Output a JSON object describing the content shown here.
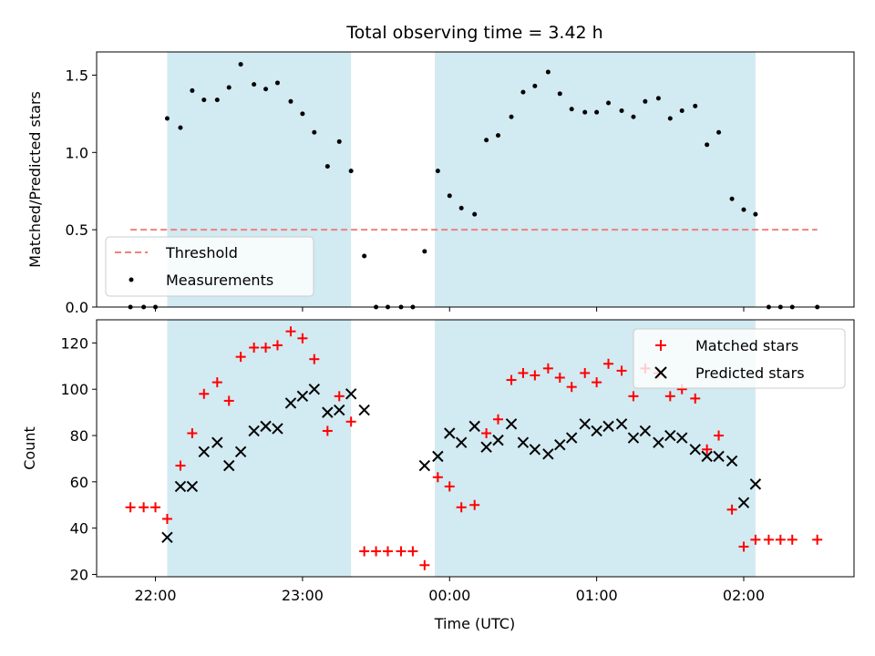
{
  "colors": {
    "shade": "#add8e6",
    "threshold": "#f08080",
    "measurements": "#000000",
    "matched": "#ff0000",
    "predicted": "#000000"
  },
  "chart_data": {
    "type": "scatter",
    "title": "Total observing time = 3.42 h",
    "xlabel": "Time (UTC)",
    "x_ticks": [
      "22:00",
      "23:00",
      "00:00",
      "01:00",
      "02:00"
    ],
    "x_tick_values": [
      22.0,
      23.0,
      24.0,
      25.0,
      26.0
    ],
    "xlim": [
      21.6,
      26.75
    ],
    "shaded_intervals": [
      [
        22.08,
        23.33
      ],
      [
        23.9,
        26.08
      ]
    ],
    "top": {
      "ylabel": "Matched/Predicted stars",
      "ylim": [
        0,
        1.65
      ],
      "y_ticks": [
        "0.0",
        "0.5",
        "1.0",
        "1.5"
      ],
      "y_tick_values": [
        0,
        0.5,
        1.0,
        1.5
      ],
      "threshold": {
        "name": "Threshold",
        "value": 0.5,
        "x_range": [
          21.83,
          26.5
        ]
      },
      "legend": {
        "location": "lower-left",
        "entries": [
          "Threshold",
          "Measurements"
        ]
      },
      "measurements": {
        "name": "Measurements",
        "points": [
          [
            21.83,
            0
          ],
          [
            21.92,
            0
          ],
          [
            22.0,
            0
          ],
          [
            22.08,
            1.22
          ],
          [
            22.17,
            1.16
          ],
          [
            22.25,
            1.4
          ],
          [
            22.33,
            1.34
          ],
          [
            22.42,
            1.34
          ],
          [
            22.5,
            1.42
          ],
          [
            22.58,
            1.57
          ],
          [
            22.67,
            1.44
          ],
          [
            22.75,
            1.41
          ],
          [
            22.83,
            1.45
          ],
          [
            22.92,
            1.33
          ],
          [
            23.0,
            1.25
          ],
          [
            23.08,
            1.13
          ],
          [
            23.17,
            0.91
          ],
          [
            23.25,
            1.07
          ],
          [
            23.33,
            0.88
          ],
          [
            23.42,
            0.33
          ],
          [
            23.5,
            0
          ],
          [
            23.58,
            0
          ],
          [
            23.67,
            0
          ],
          [
            23.75,
            0
          ],
          [
            23.83,
            0.36
          ],
          [
            23.92,
            0.88
          ],
          [
            24.0,
            0.72
          ],
          [
            24.08,
            0.64
          ],
          [
            24.17,
            0.6
          ],
          [
            24.25,
            1.08
          ],
          [
            24.33,
            1.11
          ],
          [
            24.42,
            1.23
          ],
          [
            24.5,
            1.39
          ],
          [
            24.58,
            1.43
          ],
          [
            24.67,
            1.52
          ],
          [
            24.75,
            1.38
          ],
          [
            24.83,
            1.28
          ],
          [
            24.92,
            1.26
          ],
          [
            25.0,
            1.26
          ],
          [
            25.08,
            1.32
          ],
          [
            25.17,
            1.27
          ],
          [
            25.25,
            1.23
          ],
          [
            25.33,
            1.33
          ],
          [
            25.42,
            1.35
          ],
          [
            25.5,
            1.22
          ],
          [
            25.58,
            1.27
          ],
          [
            25.67,
            1.3
          ],
          [
            25.75,
            1.05
          ],
          [
            25.83,
            1.13
          ],
          [
            25.92,
            0.7
          ],
          [
            26.0,
            0.63
          ],
          [
            26.08,
            0.6
          ],
          [
            26.17,
            0
          ],
          [
            26.25,
            0
          ],
          [
            26.33,
            0
          ],
          [
            26.5,
            0
          ]
        ]
      }
    },
    "bottom": {
      "ylabel": "Count",
      "ylim": [
        19,
        130
      ],
      "y_ticks": [
        "20",
        "40",
        "60",
        "80",
        "100",
        "120"
      ],
      "y_tick_values": [
        20,
        40,
        60,
        80,
        100,
        120
      ],
      "legend": {
        "location": "upper-right",
        "entries": [
          "Matched stars",
          "Predicted stars"
        ]
      },
      "matched": {
        "name": "Matched stars",
        "points": [
          [
            21.83,
            49
          ],
          [
            21.92,
            49
          ],
          [
            22.0,
            49
          ],
          [
            22.08,
            44
          ],
          [
            22.17,
            67
          ],
          [
            22.25,
            81
          ],
          [
            22.33,
            98
          ],
          [
            22.42,
            103
          ],
          [
            22.5,
            95
          ],
          [
            22.58,
            114
          ],
          [
            22.67,
            118
          ],
          [
            22.75,
            118
          ],
          [
            22.83,
            119
          ],
          [
            22.92,
            125
          ],
          [
            23.0,
            122
          ],
          [
            23.08,
            113
          ],
          [
            23.17,
            82
          ],
          [
            23.25,
            97
          ],
          [
            23.33,
            86
          ],
          [
            23.42,
            30
          ],
          [
            23.5,
            30
          ],
          [
            23.58,
            30
          ],
          [
            23.67,
            30
          ],
          [
            23.75,
            30
          ],
          [
            23.83,
            24
          ],
          [
            23.92,
            62
          ],
          [
            24.0,
            58
          ],
          [
            24.08,
            49
          ],
          [
            24.17,
            50
          ],
          [
            24.25,
            81
          ],
          [
            24.33,
            87
          ],
          [
            24.42,
            104
          ],
          [
            24.5,
            107
          ],
          [
            24.58,
            106
          ],
          [
            24.67,
            109
          ],
          [
            24.75,
            105
          ],
          [
            24.83,
            101
          ],
          [
            24.92,
            107
          ],
          [
            25.0,
            103
          ],
          [
            25.08,
            111
          ],
          [
            25.17,
            108
          ],
          [
            25.25,
            97
          ],
          [
            25.33,
            109
          ],
          [
            25.42,
            107
          ],
          [
            25.5,
            97
          ],
          [
            25.58,
            100
          ],
          [
            25.67,
            96
          ],
          [
            25.75,
            74
          ],
          [
            25.83,
            80
          ],
          [
            25.92,
            48
          ],
          [
            26.0,
            32
          ],
          [
            26.08,
            35
          ],
          [
            26.17,
            35
          ],
          [
            26.25,
            35
          ],
          [
            26.33,
            35
          ],
          [
            26.5,
            35
          ]
        ]
      },
      "predicted": {
        "name": "Predicted stars",
        "points": [
          [
            22.08,
            36
          ],
          [
            22.17,
            58
          ],
          [
            22.25,
            58
          ],
          [
            22.33,
            73
          ],
          [
            22.42,
            77
          ],
          [
            22.5,
            67
          ],
          [
            22.58,
            73
          ],
          [
            22.67,
            82
          ],
          [
            22.75,
            84
          ],
          [
            22.83,
            83
          ],
          [
            22.92,
            94
          ],
          [
            23.0,
            97
          ],
          [
            23.08,
            100
          ],
          [
            23.17,
            90
          ],
          [
            23.25,
            91
          ],
          [
            23.33,
            98
          ],
          [
            23.42,
            91
          ],
          [
            23.83,
            67
          ],
          [
            23.92,
            71
          ],
          [
            24.0,
            81
          ],
          [
            24.08,
            77
          ],
          [
            24.17,
            84
          ],
          [
            24.25,
            75
          ],
          [
            24.33,
            78
          ],
          [
            24.42,
            85
          ],
          [
            24.5,
            77
          ],
          [
            24.58,
            74
          ],
          [
            24.67,
            72
          ],
          [
            24.75,
            76
          ],
          [
            24.83,
            79
          ],
          [
            24.92,
            85
          ],
          [
            25.0,
            82
          ],
          [
            25.08,
            84
          ],
          [
            25.17,
            85
          ],
          [
            25.25,
            79
          ],
          [
            25.33,
            82
          ],
          [
            25.42,
            77
          ],
          [
            25.5,
            80
          ],
          [
            25.58,
            79
          ],
          [
            25.67,
            74
          ],
          [
            25.75,
            71
          ],
          [
            25.83,
            71
          ],
          [
            25.92,
            69
          ],
          [
            26.0,
            51
          ],
          [
            26.08,
            59
          ]
        ]
      }
    }
  }
}
